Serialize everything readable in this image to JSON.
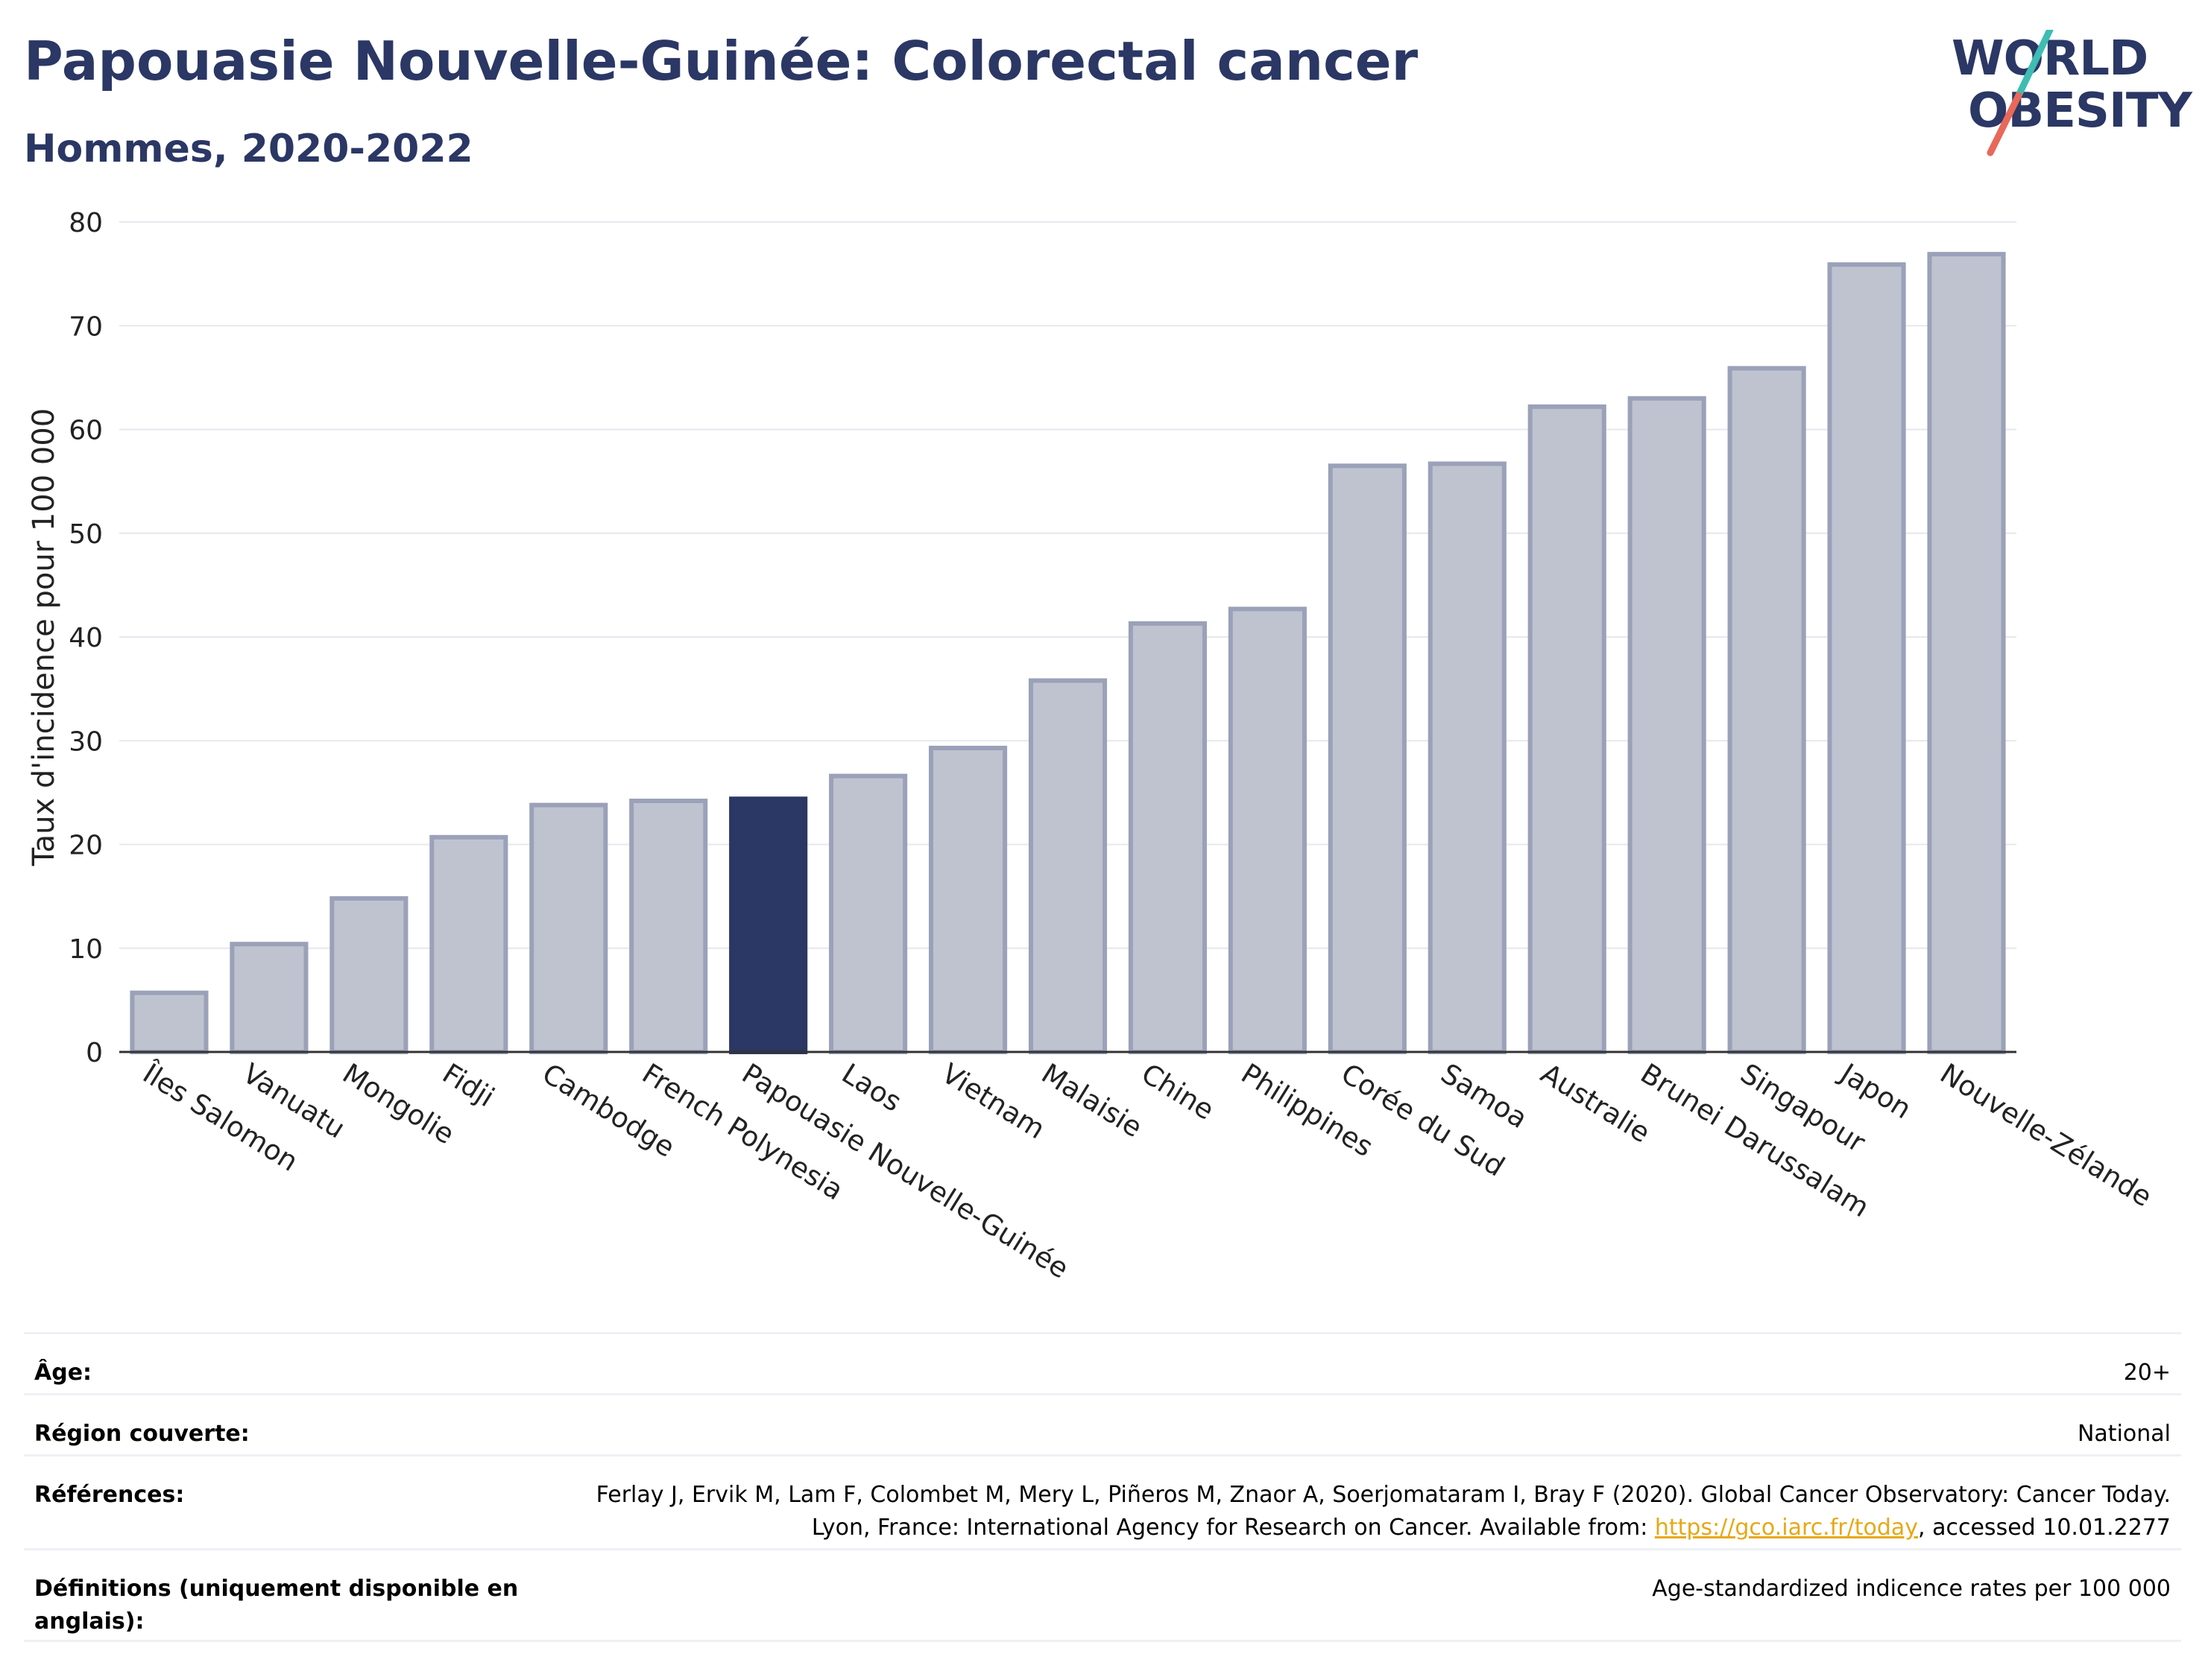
{
  "header": {
    "title": "Papouasie Nouvelle-Guinée: Colorectal cancer",
    "subtitle": "Hommes, 2020-2022",
    "logo_line1": "WORLD",
    "logo_line2": "OBESITY"
  },
  "colors": {
    "bar": "#bfc3d0",
    "bar_edge": "#9aa1b8",
    "highlight": "#2b3764",
    "logo_teal": "#3dbdb3",
    "logo_coral": "#e8685a"
  },
  "chart_data": {
    "type": "bar",
    "ylabel": "Taux d'incidence pour 100 000",
    "ylim": [
      0,
      80
    ],
    "yticks": [
      0,
      10,
      20,
      30,
      40,
      50,
      60,
      70,
      80
    ],
    "grid": true,
    "highlight": "Papouasie Nouvelle-Guinée",
    "categories": [
      "Îles Salomon",
      "Vanuatu",
      "Mongolie",
      "Fidji",
      "Cambodge",
      "French Polynesia",
      "Papouasie Nouvelle-Guinée",
      "Laos",
      "Vietnam",
      "Malaisie",
      "Chine",
      "Philippines",
      "Corée du Sud",
      "Samoa",
      "Australie",
      "Brunei Darussalam",
      "Singapour",
      "Japon",
      "Nouvelle-Zélande"
    ],
    "values": [
      5.7,
      10.4,
      14.8,
      20.7,
      23.8,
      24.2,
      24.4,
      26.6,
      29.3,
      35.8,
      41.3,
      42.7,
      56.5,
      56.7,
      62.2,
      63.0,
      65.9,
      75.9,
      76.9
    ]
  },
  "meta": [
    {
      "label": "Âge:",
      "value": "20+"
    },
    {
      "label": "Région couverte:",
      "value": "National"
    },
    {
      "label": "Références:",
      "value_pre": "Ferlay J, Ervik M, Lam F, Colombet M, Mery L, Piñeros M, Znaor A, Soerjomataram I, Bray F (2020). Global Cancer Observatory: Cancer Today. Lyon, France: International Agency for Research on Cancer. Available from: ",
      "link": "https://gco.iarc.fr/today",
      "value_post": ", accessed 10.01.2277"
    },
    {
      "label": "Définitions (uniquement disponible en anglais):",
      "value": "Age-standardized indicence rates per 100 000"
    }
  ]
}
